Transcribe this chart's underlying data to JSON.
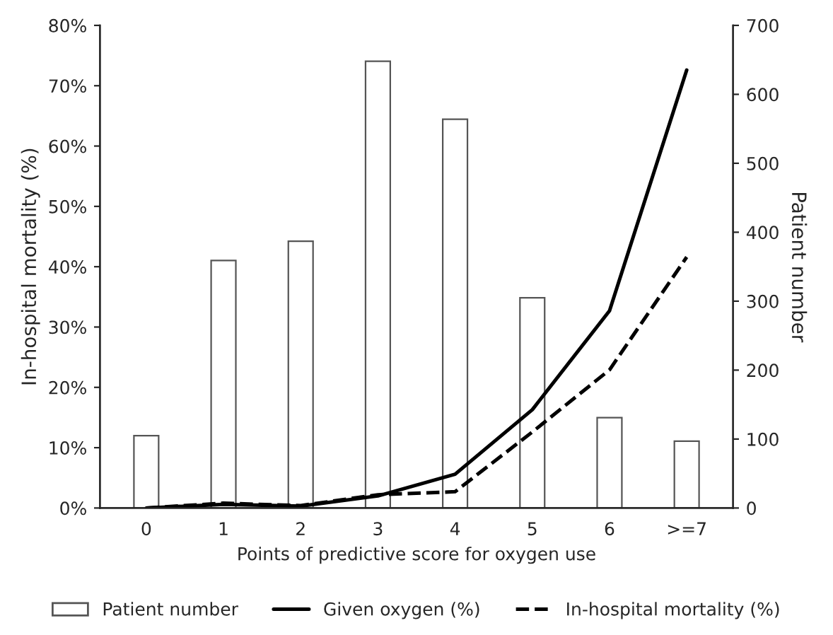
{
  "chart_data": {
    "type": "bar",
    "xlabel": "Points of predictive score for oxygen use",
    "ylabel": "In-hospital mortality (%)",
    "y2label": "Patient number",
    "categories": [
      "0",
      "1",
      "2",
      "3",
      "4",
      "5",
      "6",
      ">=7"
    ],
    "series": [
      {
        "name": "Patient number",
        "axis": "y2",
        "color": "#ffffff",
        "values": [
          105,
          359,
          387,
          648,
          564,
          305,
          131,
          97
        ]
      },
      {
        "name": "Given oxygen (%)",
        "type": "line",
        "color": "#000000",
        "line_style": "solid",
        "values": [
          0,
          0.6,
          0.3,
          2.0,
          5.6,
          16.3,
          32.7,
          72.6
        ]
      },
      {
        "name": "In-hospital mortality (%)",
        "type": "line",
        "color": "#000000",
        "line_style": "dashed",
        "values": [
          0,
          0.8,
          0.4,
          2.2,
          2.7,
          12.6,
          22.9,
          41.6
        ]
      }
    ],
    "ylim": [
      0,
      80
    ],
    "yticks": [
      {
        "value": 0,
        "label": "0%"
      },
      {
        "value": 10,
        "label": "10%"
      },
      {
        "value": 20,
        "label": "20%"
      },
      {
        "value": 30,
        "label": "30%"
      },
      {
        "value": 40,
        "label": "40%"
      },
      {
        "value": 50,
        "label": "50%"
      },
      {
        "value": 60,
        "label": "60%"
      },
      {
        "value": 70,
        "label": "70%"
      },
      {
        "value": 80,
        "label": "80%"
      }
    ],
    "y2lim": [
      0,
      700
    ],
    "y2ticks": [
      0,
      100,
      200,
      300,
      400,
      500,
      600,
      700
    ],
    "grid": false,
    "legend": "bottom",
    "marker": "none"
  }
}
